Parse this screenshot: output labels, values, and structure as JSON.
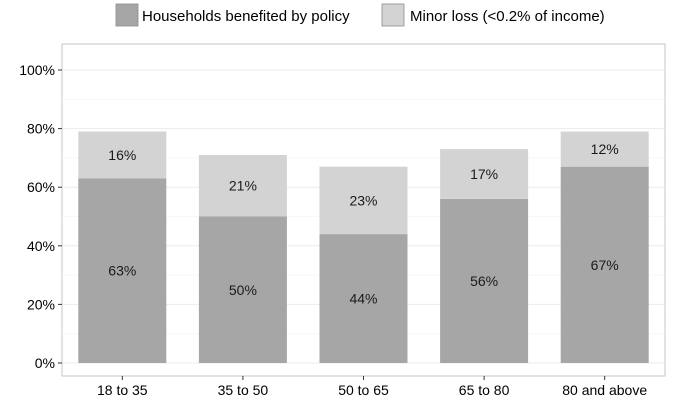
{
  "chart_data": {
    "type": "bar",
    "stacked": true,
    "categories": [
      "18 to 35",
      "35 to 50",
      "50 to 65",
      "65 to 80",
      "80 and above"
    ],
    "series": [
      {
        "name": "Households benefited by policy",
        "values": [
          63,
          50,
          44,
          56,
          67
        ],
        "labels": [
          "63%",
          "50%",
          "44%",
          "56%",
          "67%"
        ],
        "color": "#a6a6a6"
      },
      {
        "name": "Minor loss (<0.2% of income)",
        "values": [
          16,
          21,
          23,
          17,
          12
        ],
        "labels": [
          "16%",
          "21%",
          "23%",
          "17%",
          "12%"
        ],
        "color": "#d3d3d3"
      }
    ],
    "ylim": [
      0,
      100
    ],
    "yticks": [
      "0%",
      "20%",
      "40%",
      "60%",
      "80%",
      "100%"
    ],
    "ytick_values": [
      0,
      20,
      40,
      60,
      80,
      100
    ],
    "xlabel": "",
    "ylabel": "",
    "grid": true,
    "legend_position": "top"
  }
}
